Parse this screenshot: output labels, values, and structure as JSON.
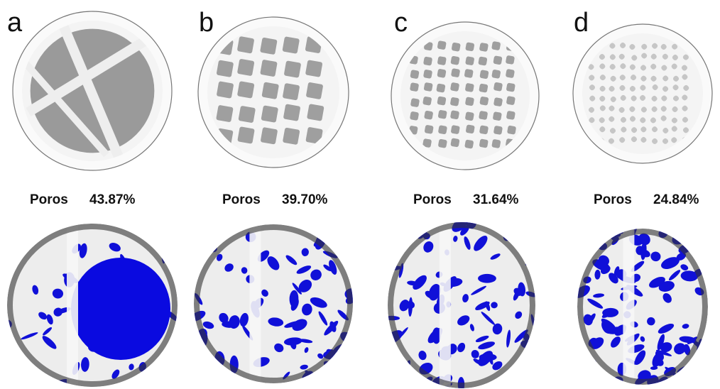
{
  "panels": [
    {
      "label": "a",
      "pore_label": "Poros",
      "porosity": "43.87%"
    },
    {
      "label": "b",
      "pore_label": "Poros",
      "porosity": "39.70%"
    },
    {
      "label": "c",
      "pore_label": "Poros",
      "porosity": "31.64%"
    },
    {
      "label": "d",
      "pore_label": "Poros",
      "porosity": "24.84%"
    }
  ]
}
